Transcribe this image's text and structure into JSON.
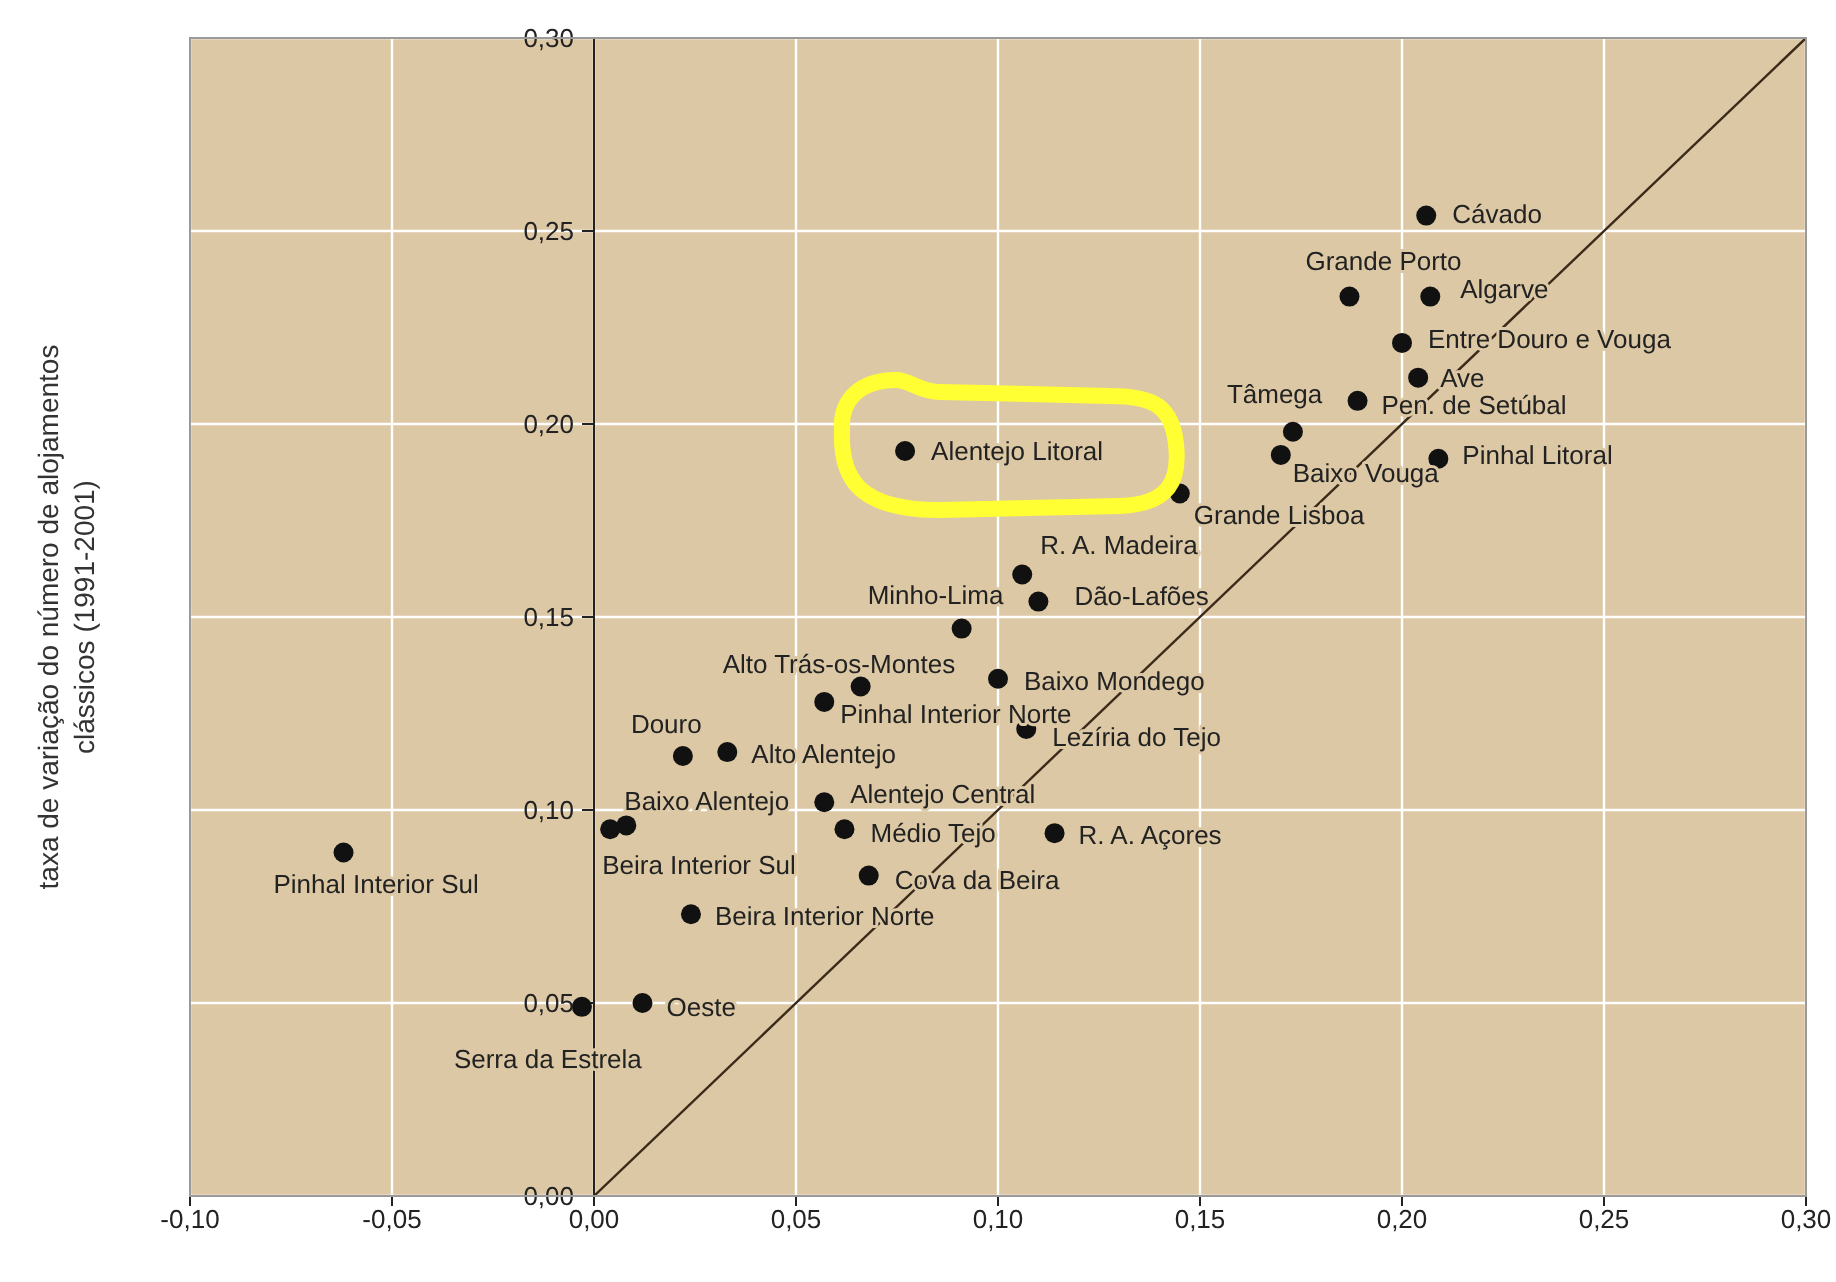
{
  "chart_data": {
    "type": "scatter",
    "ylabel": "taxa de variação do número de alojamentos\nclássicos (1991-2001)",
    "xlim": [
      -0.1,
      0.3
    ],
    "ylim": [
      0,
      0.3
    ],
    "xticks": [
      {
        "value": -0.1,
        "label": "-0,10"
      },
      {
        "value": -0.05,
        "label": "-0,05"
      },
      {
        "value": 0,
        "label": "0,00"
      },
      {
        "value": 0.05,
        "label": "0,05"
      },
      {
        "value": 0.1,
        "label": "0,10"
      },
      {
        "value": 0.15,
        "label": "0,15"
      },
      {
        "value": 0.2,
        "label": "0,20"
      },
      {
        "value": 0.25,
        "label": "0,25"
      },
      {
        "value": 0.3,
        "label": "0,30"
      }
    ],
    "yticks": [
      {
        "value": 0,
        "label": "0,00"
      },
      {
        "value": 0.05,
        "label": "0,05"
      },
      {
        "value": 0.1,
        "label": "0,10"
      },
      {
        "value": 0.15,
        "label": "0,15"
      },
      {
        "value": 0.2,
        "label": "0,20"
      },
      {
        "value": 0.25,
        "label": "0,25"
      },
      {
        "value": 0.3,
        "label": "0,30"
      }
    ],
    "grid": true,
    "series": [
      {
        "marker": "circle",
        "color": "#111111",
        "x": [
          -0.062,
          -0.003,
          0.012,
          0.004,
          0.008,
          0.022,
          0.033,
          0.057,
          0.062,
          0.068,
          0.024,
          0.057,
          0.066,
          0.1,
          0.107,
          0.114,
          0.091,
          0.106,
          0.11,
          0.077,
          0.145,
          0.173,
          0.17,
          0.189,
          0.204,
          0.2,
          0.187,
          0.207,
          0.206,
          0.209
        ],
        "values": [
          0.089,
          0.049,
          0.05,
          0.095,
          0.096,
          0.114,
          0.115,
          0.102,
          0.095,
          0.083,
          0.073,
          0.128,
          0.132,
          0.134,
          0.121,
          0.094,
          0.147,
          0.161,
          0.154,
          0.193,
          0.182,
          0.198,
          0.192,
          0.206,
          0.212,
          0.221,
          0.233,
          0.233,
          0.254,
          0.191
        ]
      },
      {
        "type": "line",
        "marker": "none",
        "color": "#3b2a1a",
        "x": [
          0,
          0.3
        ],
        "values": [
          0,
          0.3
        ]
      }
    ],
    "annotations": [
      {
        "text": "Pinhal Interior Sul",
        "x": -0.062,
        "y": 0.089
      },
      {
        "text": "Serra da Estrela",
        "x": -0.003,
        "y": 0.049
      },
      {
        "text": "Oeste",
        "x": 0.012,
        "y": 0.05
      },
      {
        "text": "Beira Interior Sul",
        "x": 0.004,
        "y": 0.095
      },
      {
        "text": "Baixo Alentejo",
        "x": 0.008,
        "y": 0.096
      },
      {
        "text": "Douro",
        "x": 0.022,
        "y": 0.114
      },
      {
        "text": "Alto Alentejo",
        "x": 0.033,
        "y": 0.115
      },
      {
        "text": "Alentejo Central",
        "x": 0.057,
        "y": 0.102
      },
      {
        "text": "Médio Tejo",
        "x": 0.062,
        "y": 0.095
      },
      {
        "text": "Cova da Beira",
        "x": 0.068,
        "y": 0.083
      },
      {
        "text": "Beira Interior Norte",
        "x": 0.024,
        "y": 0.073
      },
      {
        "text": "Pinhal Interior Norte",
        "x": 0.057,
        "y": 0.128
      },
      {
        "text": "Alto Trás-os-Montes",
        "x": 0.066,
        "y": 0.132
      },
      {
        "text": "Baixo Mondego",
        "x": 0.1,
        "y": 0.134
      },
      {
        "text": "Lezíria do Tejo",
        "x": 0.107,
        "y": 0.121
      },
      {
        "text": "R. A. Açores",
        "x": 0.114,
        "y": 0.094
      },
      {
        "text": "Minho-Lima",
        "x": 0.091,
        "y": 0.147
      },
      {
        "text": "R. A. Madeira",
        "x": 0.106,
        "y": 0.161
      },
      {
        "text": "Dão-Lafões",
        "x": 0.11,
        "y": 0.154
      },
      {
        "text": "Alentejo Litoral",
        "x": 0.077,
        "y": 0.193
      },
      {
        "text": "Grande Lisboa",
        "x": 0.145,
        "y": 0.182
      },
      {
        "text": "Tâmega",
        "x": 0.173,
        "y": 0.198
      },
      {
        "text": "Baixo Vouga",
        "x": 0.17,
        "y": 0.192
      },
      {
        "text": "Pen. de Setúbal",
        "x": 0.189,
        "y": 0.206
      },
      {
        "text": "Ave",
        "x": 0.204,
        "y": 0.212
      },
      {
        "text": "Entre Douro e Vouga",
        "x": 0.2,
        "y": 0.221
      },
      {
        "text": "Grande Porto",
        "x": 0.187,
        "y": 0.233
      },
      {
        "text": "Algarve",
        "x": 0.207,
        "y": 0.233
      },
      {
        "text": "Cávado",
        "x": 0.206,
        "y": 0.254
      },
      {
        "text": "Pinhal Litoral",
        "x": 0.209,
        "y": 0.191
      }
    ]
  }
}
